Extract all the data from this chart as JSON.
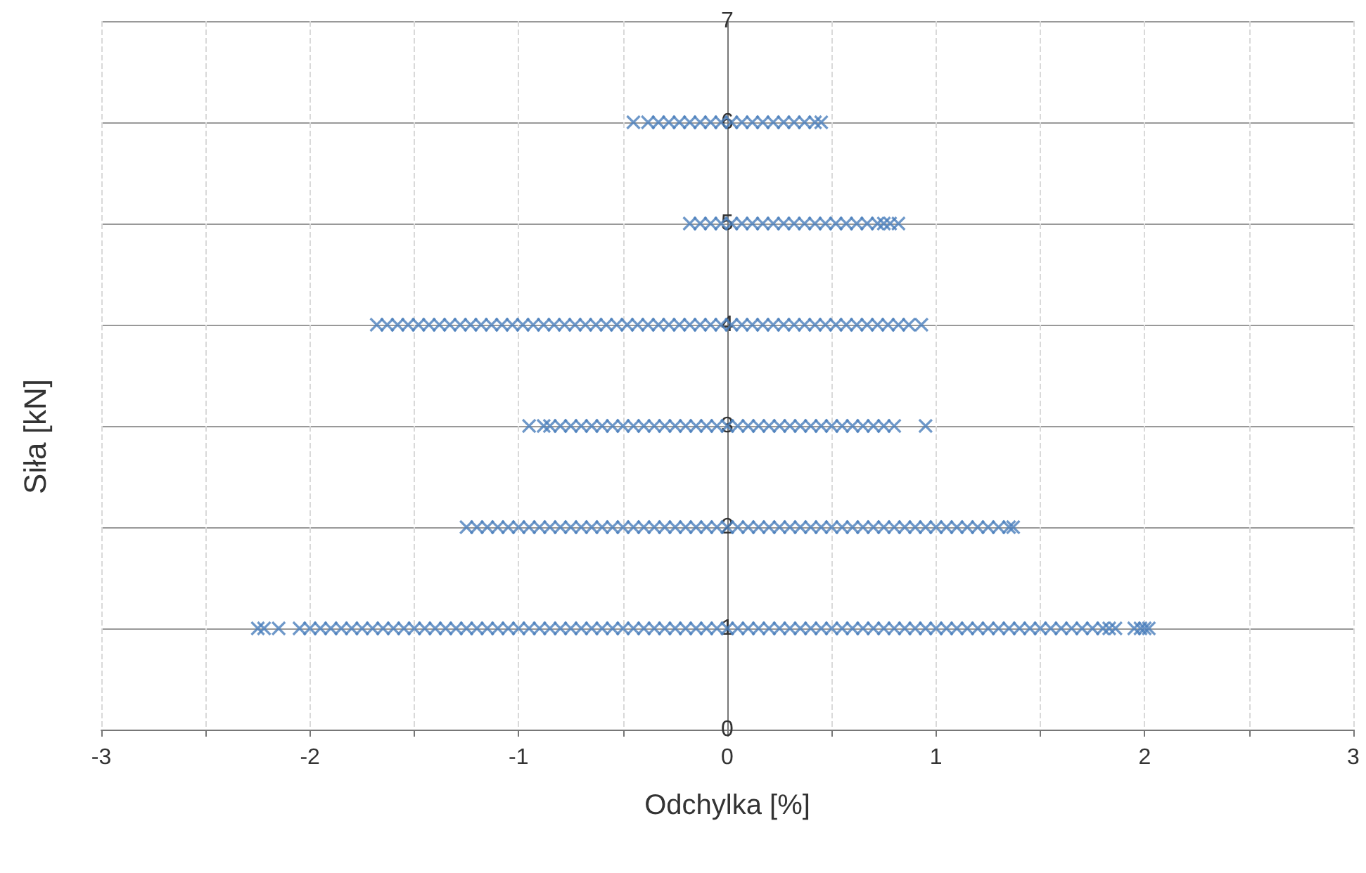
{
  "chart_data": {
    "type": "scatter",
    "xlabel": "Odchylka [%]",
    "ylabel": "Siła [kN]",
    "xlim": [
      -3,
      3
    ],
    "xticks": [
      -3,
      {
        "value": -2.5,
        "label": null
      },
      -2,
      {
        "value": -1.5,
        "label": null
      },
      -1,
      {
        "value": -0.5,
        "label": null
      },
      0,
      {
        "value": 0.5,
        "label": null
      },
      1,
      {
        "value": 1.5,
        "label": null
      },
      2,
      {
        "value": 2.5,
        "label": null
      },
      3
    ],
    "ylim": [
      0,
      7
    ],
    "yticks": [
      0,
      1,
      2,
      3,
      4,
      5,
      6,
      7
    ],
    "grid": true,
    "marker": "cross",
    "series": [
      {
        "color": "#4a7ebb",
        "x": [
          -0.45,
          -0.38,
          -0.33,
          -0.28,
          -0.23,
          -0.18,
          -0.13,
          -0.08,
          -0.03,
          0.02,
          0.07,
          0.12,
          0.17,
          0.22,
          0.27,
          0.32,
          0.37,
          0.42,
          0.45
        ],
        "values": [
          6,
          6,
          6,
          6,
          6,
          6,
          6,
          6,
          6,
          6,
          6,
          6,
          6,
          6,
          6,
          6,
          6,
          6,
          6
        ]
      },
      {
        "color": "#4a7ebb",
        "x": [
          -0.18,
          -0.13,
          -0.08,
          -0.03,
          0.02,
          0.07,
          0.12,
          0.17,
          0.22,
          0.27,
          0.32,
          0.37,
          0.42,
          0.47,
          0.52,
          0.57,
          0.62,
          0.67,
          0.72,
          0.75,
          0.78,
          0.82
        ],
        "values": [
          5,
          5,
          5,
          5,
          5,
          5,
          5,
          5,
          5,
          5,
          5,
          5,
          5,
          5,
          5,
          5,
          5,
          5,
          5,
          5,
          5,
          5
        ]
      },
      {
        "color": "#4a7ebb",
        "x": [
          -1.68,
          -1.63,
          -1.58,
          -1.53,
          -1.48,
          -1.43,
          -1.38,
          -1.33,
          -1.28,
          -1.23,
          -1.18,
          -1.13,
          -1.08,
          -1.03,
          -0.98,
          -0.93,
          -0.88,
          -0.83,
          -0.78,
          -0.73,
          -0.68,
          -0.63,
          -0.58,
          -0.53,
          -0.48,
          -0.43,
          -0.38,
          -0.33,
          -0.28,
          -0.23,
          -0.18,
          -0.13,
          -0.08,
          -0.03,
          0.02,
          0.07,
          0.12,
          0.17,
          0.22,
          0.27,
          0.32,
          0.37,
          0.42,
          0.47,
          0.52,
          0.57,
          0.62,
          0.67,
          0.72,
          0.77,
          0.82,
          0.87,
          0.93
        ],
        "values": [
          4,
          4,
          4,
          4,
          4,
          4,
          4,
          4,
          4,
          4,
          4,
          4,
          4,
          4,
          4,
          4,
          4,
          4,
          4,
          4,
          4,
          4,
          4,
          4,
          4,
          4,
          4,
          4,
          4,
          4,
          4,
          4,
          4,
          4,
          4,
          4,
          4,
          4,
          4,
          4,
          4,
          4,
          4,
          4,
          4,
          4,
          4,
          4,
          4,
          4,
          4,
          4,
          4
        ]
      },
      {
        "color": "#4a7ebb",
        "x": [
          -0.95,
          -0.88,
          -0.85,
          -0.8,
          -0.75,
          -0.7,
          -0.65,
          -0.6,
          -0.55,
          -0.5,
          -0.45,
          -0.4,
          -0.35,
          -0.3,
          -0.25,
          -0.2,
          -0.15,
          -0.1,
          -0.05,
          0,
          0.05,
          0.1,
          0.15,
          0.2,
          0.25,
          0.3,
          0.35,
          0.4,
          0.45,
          0.5,
          0.55,
          0.6,
          0.65,
          0.7,
          0.75,
          0.8,
          0.95
        ],
        "values": [
          3,
          3,
          3,
          3,
          3,
          3,
          3,
          3,
          3,
          3,
          3,
          3,
          3,
          3,
          3,
          3,
          3,
          3,
          3,
          3,
          3,
          3,
          3,
          3,
          3,
          3,
          3,
          3,
          3,
          3,
          3,
          3,
          3,
          3,
          3,
          3,
          3
        ]
      },
      {
        "color": "#4a7ebb",
        "x": [
          -1.25,
          -1.2,
          -1.15,
          -1.1,
          -1.05,
          -1,
          -0.95,
          -0.9,
          -0.85,
          -0.8,
          -0.75,
          -0.7,
          -0.65,
          -0.6,
          -0.55,
          -0.5,
          -0.45,
          -0.4,
          -0.35,
          -0.3,
          -0.25,
          -0.2,
          -0.15,
          -0.1,
          -0.05,
          0,
          0.05,
          0.1,
          0.15,
          0.2,
          0.25,
          0.3,
          0.35,
          0.4,
          0.45,
          0.5,
          0.55,
          0.6,
          0.65,
          0.7,
          0.75,
          0.8,
          0.85,
          0.9,
          0.95,
          1,
          1.05,
          1.1,
          1.15,
          1.2,
          1.25,
          1.3,
          1.35,
          1.37
        ],
        "values": [
          2,
          2,
          2,
          2,
          2,
          2,
          2,
          2,
          2,
          2,
          2,
          2,
          2,
          2,
          2,
          2,
          2,
          2,
          2,
          2,
          2,
          2,
          2,
          2,
          2,
          2,
          2,
          2,
          2,
          2,
          2,
          2,
          2,
          2,
          2,
          2,
          2,
          2,
          2,
          2,
          2,
          2,
          2,
          2,
          2,
          2,
          2,
          2,
          2,
          2,
          2,
          2,
          2,
          2
        ]
      },
      {
        "color": "#4a7ebb",
        "x": [
          -2.25,
          -2.22,
          -2.15,
          -2.05,
          -2,
          -1.95,
          -1.9,
          -1.85,
          -1.8,
          -1.75,
          -1.7,
          -1.65,
          -1.6,
          -1.55,
          -1.5,
          -1.45,
          -1.4,
          -1.35,
          -1.3,
          -1.25,
          -1.2,
          -1.15,
          -1.1,
          -1.05,
          -1,
          -0.95,
          -0.9,
          -0.85,
          -0.8,
          -0.75,
          -0.7,
          -0.65,
          -0.6,
          -0.55,
          -0.5,
          -0.45,
          -0.4,
          -0.35,
          -0.3,
          -0.25,
          -0.2,
          -0.15,
          -0.1,
          -0.05,
          0,
          0.05,
          0.1,
          0.15,
          0.2,
          0.25,
          0.3,
          0.35,
          0.4,
          0.45,
          0.5,
          0.55,
          0.6,
          0.65,
          0.7,
          0.75,
          0.8,
          0.85,
          0.9,
          0.95,
          1,
          1.05,
          1.1,
          1.15,
          1.2,
          1.25,
          1.3,
          1.35,
          1.4,
          1.45,
          1.5,
          1.55,
          1.6,
          1.65,
          1.7,
          1.75,
          1.8,
          1.83,
          1.86,
          1.95,
          1.98,
          2,
          2.02
        ],
        "values": [
          1,
          1,
          1,
          1,
          1,
          1,
          1,
          1,
          1,
          1,
          1,
          1,
          1,
          1,
          1,
          1,
          1,
          1,
          1,
          1,
          1,
          1,
          1,
          1,
          1,
          1,
          1,
          1,
          1,
          1,
          1,
          1,
          1,
          1,
          1,
          1,
          1,
          1,
          1,
          1,
          1,
          1,
          1,
          1,
          1,
          1,
          1,
          1,
          1,
          1,
          1,
          1,
          1,
          1,
          1,
          1,
          1,
          1,
          1,
          1,
          1,
          1,
          1,
          1,
          1,
          1,
          1,
          1,
          1,
          1,
          1,
          1,
          1,
          1,
          1,
          1,
          1,
          1,
          1,
          1,
          1,
          1,
          1,
          1,
          1,
          1,
          1
        ]
      }
    ]
  }
}
